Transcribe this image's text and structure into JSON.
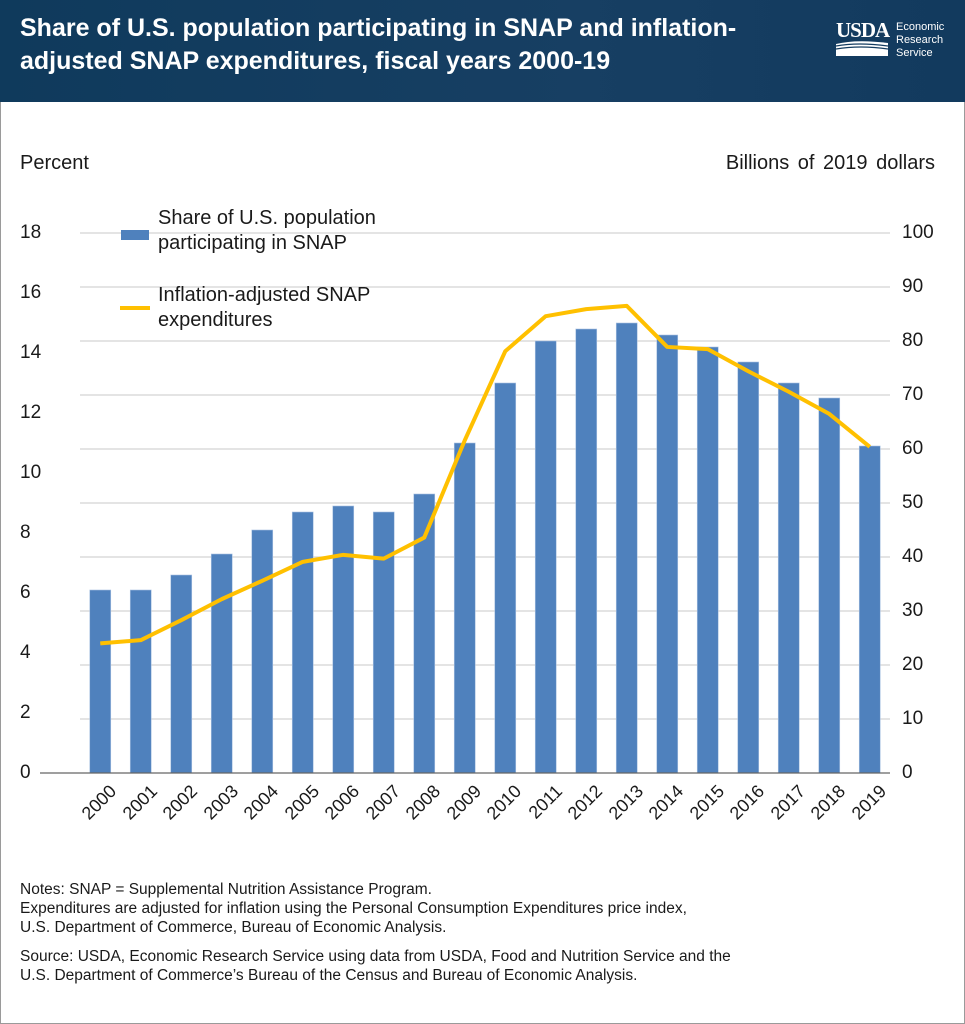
{
  "header": {
    "title": "Share of U.S. population participating in SNAP and inflation-adjusted SNAP expenditures, fiscal years 2000-19",
    "logo": {
      "mark": "USDA",
      "text": [
        "Economic",
        "Research",
        "Service"
      ]
    },
    "background_color": "#143c60"
  },
  "chart_data": {
    "type": "bar+line",
    "title": "Share of U.S. population participating in SNAP and inflation-adjusted SNAP expenditures, fiscal years 2000-19",
    "categories": [
      "2000",
      "2001",
      "2002",
      "2003",
      "2004",
      "2005",
      "2006",
      "2007",
      "2008",
      "2009",
      "2010",
      "2011",
      "2012",
      "2013",
      "2014",
      "2015",
      "2016",
      "2017",
      "2018",
      "2019"
    ],
    "ylabel_left": "Percent",
    "ylabel_right": "Billions  of 2019 dollars",
    "ylim_left": [
      0,
      18
    ],
    "yticks_left": [
      "0",
      "2",
      "4",
      "6",
      "8",
      "10",
      "12",
      "14",
      "16",
      "18"
    ],
    "ylim_right": [
      0,
      100
    ],
    "yticks_right": [
      "0",
      "10",
      "20",
      "30",
      "40",
      "50",
      "60",
      "70",
      "80",
      "90",
      "100"
    ],
    "grid": true,
    "legend_placement": "top-left",
    "series": [
      {
        "name": "Share of U.S. population participating in SNAP",
        "type": "bar",
        "axis": "left",
        "color": "#4f81bd",
        "values": [
          6.1,
          6.1,
          6.6,
          7.3,
          8.1,
          8.7,
          8.9,
          8.7,
          9.3,
          11.0,
          13.0,
          14.4,
          14.8,
          15.0,
          14.6,
          14.2,
          13.7,
          13.0,
          12.5,
          10.9
        ]
      },
      {
        "name": "Inflation-adjusted SNAP expenditures",
        "type": "line",
        "axis": "right",
        "color": "#ffc000",
        "values": [
          24.0,
          24.6,
          28.3,
          32.2,
          35.6,
          39.1,
          40.4,
          39.7,
          43.6,
          61.6,
          78.1,
          84.6,
          85.9,
          86.5,
          78.9,
          78.5,
          74.4,
          70.6,
          66.5,
          60.4
        ]
      }
    ],
    "legend": [
      {
        "lines": [
          "Share of U.S. population",
          "participating in SNAP"
        ]
      },
      {
        "lines": [
          "Inflation-adjusted SNAP",
          "expenditures"
        ]
      }
    ]
  },
  "notes": {
    "notes_text": [
      "Notes: SNAP = Supplemental Nutrition Assistance Program.",
      "Expenditures are adjusted for inflation using the Personal Consumption Expenditures price index,",
      "U.S. Department of Commerce, Bureau of Economic Analysis."
    ],
    "source_text": [
      "Source: USDA, Economic Research Service using data from USDA, Food and Nutrition Service and the",
      "U.S. Department of Commerce’s Bureau of the Census and Bureau of Economic Analysis."
    ]
  }
}
